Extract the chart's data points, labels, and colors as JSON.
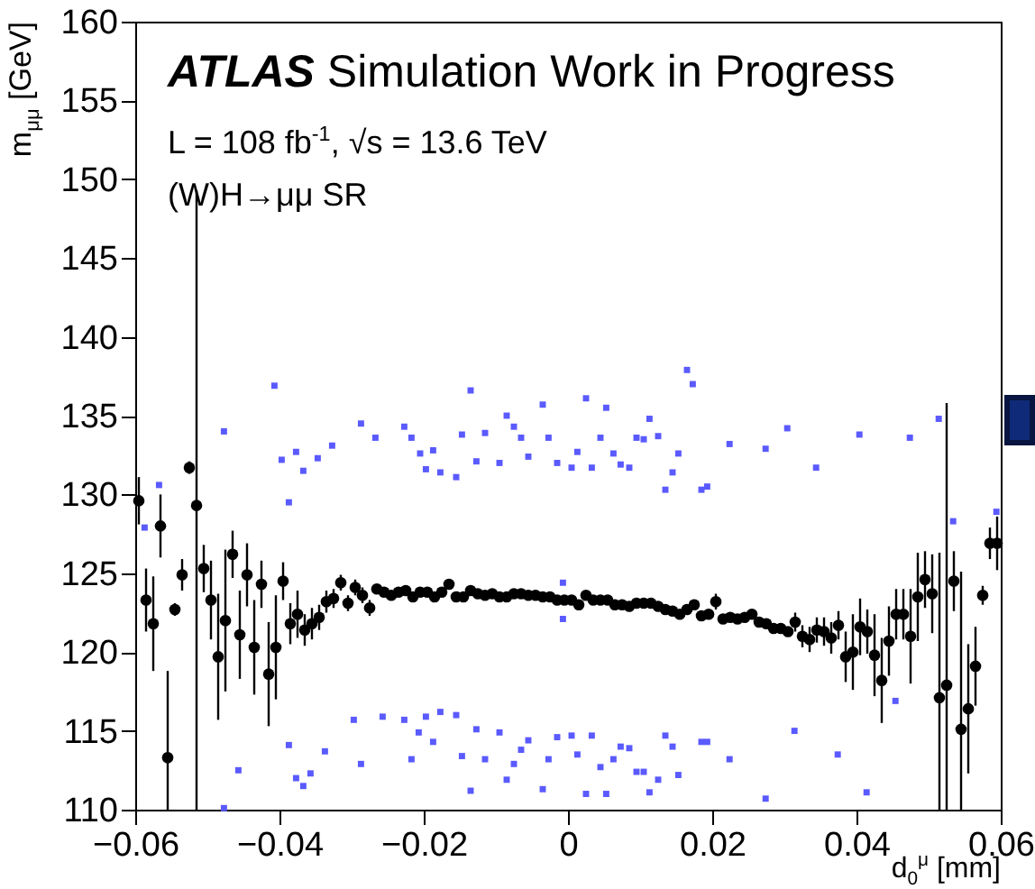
{
  "chart_data": {
    "type": "scatter",
    "title": "ATLAS Simulation Work in Progress",
    "annotations": [
      "L = 108 fb$^{-1}$, √s = 13.6 TeV",
      "(W)H→μμ SR"
    ],
    "xlabel": "d$_{0}$$^{μ}$ [mm]",
    "ylabel": "m$_{μμ}$ [GeV]",
    "xlim": [
      -0.06,
      0.06
    ],
    "xticks": [
      -0.06,
      -0.04,
      -0.02,
      0,
      0.02,
      0.04,
      0.06
    ],
    "ylim": [
      110,
      160
    ],
    "yticks": [
      110,
      115,
      120,
      125,
      130,
      135,
      140,
      145,
      150,
      155,
      160
    ],
    "grid": false,
    "marker": "circle",
    "series": [
      {
        "color": "#000000",
        "x": [
          -0.0595,
          -0.0585,
          -0.0575,
          -0.0565,
          -0.0555,
          -0.0545,
          -0.0535,
          -0.0525,
          -0.0515,
          -0.0505,
          -0.0495,
          -0.0485,
          -0.0475,
          -0.0465,
          -0.0455,
          -0.0445,
          -0.0435,
          -0.0425,
          -0.0415,
          -0.0405,
          -0.0395,
          -0.0385,
          -0.0375,
          -0.0365,
          -0.0355,
          -0.0345,
          -0.0335,
          -0.0325,
          -0.0315,
          -0.0305,
          -0.0295,
          -0.0285,
          -0.0275,
          -0.0265,
          -0.0255,
          -0.0245,
          -0.0235,
          -0.0225,
          -0.0215,
          -0.0205,
          -0.0195,
          -0.0185,
          -0.0175,
          -0.0165,
          -0.0155,
          -0.0145,
          -0.0135,
          -0.0125,
          -0.0115,
          -0.0105,
          -0.0095,
          -0.0085,
          -0.0075,
          -0.0065,
          -0.0055,
          -0.0045,
          -0.0035,
          -0.0025,
          -0.0015,
          -0.0005,
          0.0005,
          0.0015,
          0.0025,
          0.0035,
          0.0045,
          0.0055,
          0.0065,
          0.0075,
          0.0085,
          0.0095,
          0.0105,
          0.0115,
          0.0125,
          0.0135,
          0.0145,
          0.0155,
          0.0165,
          0.0175,
          0.0185,
          0.0195,
          0.0205,
          0.0215,
          0.0225,
          0.0235,
          0.0245,
          0.0255,
          0.0265,
          0.0275,
          0.0285,
          0.0295,
          0.0305,
          0.0315,
          0.0325,
          0.0335,
          0.0345,
          0.0355,
          0.0365,
          0.0375,
          0.0385,
          0.0395,
          0.0405,
          0.0415,
          0.0425,
          0.0435,
          0.0445,
          0.0455,
          0.0465,
          0.0475,
          0.0485,
          0.0495,
          0.0505,
          0.0515,
          0.0525,
          0.0535,
          0.0545,
          0.0555,
          0.0565,
          0.0575,
          0.0585,
          0.0595
        ],
        "values": [
          129.6,
          123.3,
          121.8,
          128.0,
          113.3,
          122.7,
          124.9,
          131.7,
          129.3,
          125.3,
          123.3,
          119.7,
          122.0,
          126.2,
          121.1,
          124.9,
          120.3,
          124.3,
          118.6,
          120.3,
          124.5,
          121.8,
          122.4,
          121.4,
          121.8,
          122.2,
          123.2,
          123.4,
          124.4,
          123.1,
          124.1,
          123.6,
          122.8,
          124.0,
          123.8,
          123.6,
          123.8,
          123.9,
          123.5,
          123.8,
          123.8,
          123.5,
          123.8,
          124.3,
          123.5,
          123.5,
          123.9,
          123.7,
          123.6,
          123.7,
          123.5,
          123.5,
          123.7,
          123.7,
          123.6,
          123.6,
          123.5,
          123.5,
          123.3,
          123.3,
          123.3,
          123.0,
          123.6,
          123.3,
          123.3,
          123.3,
          123.0,
          123.0,
          122.9,
          123.1,
          123.1,
          123.1,
          122.9,
          122.7,
          122.6,
          122.4,
          122.7,
          123.0,
          122.3,
          122.4,
          123.2,
          122.1,
          122.2,
          122.1,
          122.2,
          122.4,
          121.9,
          121.8,
          121.5,
          121.5,
          121.3,
          121.9,
          121.0,
          120.8,
          121.4,
          121.3,
          120.9,
          121.7,
          119.7,
          120.0,
          121.6,
          121.3,
          119.8,
          118.2,
          120.7,
          122.4,
          122.4,
          121.0,
          123.5,
          124.6,
          123.7,
          117.1,
          117.9,
          124.5,
          115.1,
          116.4,
          119.1,
          123.6,
          126.9,
          126.9
        ],
        "errors": [
          1.5,
          2,
          3,
          2,
          [
            110,
            118.8
          ],
          0.4,
          1,
          0.4,
          [
            110,
            149.3
          ],
          1.5,
          2.5,
          4,
          4.5,
          1.5,
          2.8,
          2,
          3,
          1.5,
          3.3,
          3.3,
          1.2,
          1.3,
          1.5,
          1,
          1,
          0.8,
          0.7,
          0.6,
          0.5,
          0.5,
          0.5,
          0.5,
          0.5,
          null,
          null,
          null,
          null,
          null,
          null,
          null,
          null,
          null,
          null,
          null,
          null,
          null,
          null,
          null,
          null,
          null,
          null,
          null,
          null,
          null,
          null,
          null,
          null,
          null,
          null,
          null,
          null,
          null,
          null,
          null,
          null,
          null,
          null,
          null,
          null,
          null,
          null,
          null,
          null,
          null,
          null,
          null,
          null,
          null,
          null,
          null,
          0.5,
          null,
          null,
          null,
          null,
          null,
          null,
          null,
          null,
          null,
          null,
          0.6,
          0.7,
          0.8,
          0.8,
          0.9,
          1,
          0.9,
          1.6,
          2.4,
          1.8,
          1.4,
          2.6,
          2.7,
          2.2,
          1.6,
          1.6,
          3.0,
          2.8,
          1.8,
          2.5,
          [
            110,
            126.3
          ],
          [
            110,
            135.8
          ],
          1.9,
          [
            110,
            125.1
          ],
          4.1,
          2.5,
          0.6,
          1,
          1.7
        ]
      },
      {
        "color": "#5a5aff",
        "marker": "square",
        "x": [
          -0.0227,
          -0.0217,
          -0.0205,
          -0.0197,
          -0.0187,
          -0.0177,
          -0.0155,
          -0.0147,
          -0.0135,
          -0.0127,
          -0.0115,
          -0.0095,
          -0.0085,
          -0.0075,
          -0.0065,
          -0.0055,
          -0.0035,
          -0.0027,
          -0.0015,
          0.0005,
          0.0013,
          0.0025,
          0.0033,
          0.0045,
          0.0053,
          0.0063,
          0.0073,
          0.0085,
          0.0095,
          0.0105,
          0.0113,
          0.0125,
          0.0135,
          0.0145,
          0.0153,
          0.0165,
          0.0173,
          0.0185,
          0.0193,
          -0.0587,
          -0.0567,
          -0.0477,
          -0.0407,
          -0.0397,
          -0.0387,
          -0.0377,
          -0.0367,
          -0.0347,
          -0.0327,
          -0.0287,
          -0.0267,
          0.0224,
          0.0274,
          0.0304,
          0.0344,
          0.0404,
          0.0474,
          0.0514,
          0.0534,
          0.0594,
          -0.0007,
          -0.0007
        ],
        "values": [
          134.3,
          133.6,
          132.6,
          131.6,
          132.8,
          131.4,
          131.1,
          133.8,
          136.6,
          132.1,
          133.9,
          132.0,
          135.0,
          134.3,
          133.6,
          132.4,
          135.7,
          133.6,
          132.0,
          131.7,
          132.7,
          136.1,
          131.7,
          133.6,
          135.5,
          132.6,
          131.9,
          131.7,
          133.6,
          133.5,
          134.8,
          133.7,
          130.3,
          131.4,
          132.6,
          137.9,
          137.0,
          130.3,
          130.5,
          127.9,
          130.6,
          134.0,
          136.9,
          132.2,
          129.5,
          132.7,
          131.5,
          132.3,
          133.1,
          134.5,
          133.6,
          133.2,
          132.9,
          134.2,
          131.7,
          133.8,
          133.6,
          134.8,
          128.3,
          128.9,
          124.4,
          122.1
        ]
      },
      {
        "color": "#5a5aff",
        "marker": "square",
        "x": [
          -0.0227,
          -0.0217,
          -0.0207,
          -0.0197,
          -0.0187,
          -0.0177,
          -0.0155,
          -0.0147,
          -0.0135,
          -0.0127,
          -0.0115,
          -0.0095,
          -0.0085,
          -0.0075,
          -0.0065,
          -0.0055,
          -0.0035,
          -0.0027,
          -0.0015,
          0.0005,
          0.0013,
          0.0025,
          0.0033,
          0.0045,
          0.0053,
          0.0063,
          0.0073,
          0.0085,
          0.0095,
          0.0105,
          0.0113,
          0.0125,
          0.0135,
          0.0145,
          0.0153,
          0.0185,
          0.0193,
          -0.0477,
          -0.0457,
          -0.0387,
          -0.0377,
          -0.0367,
          -0.0357,
          -0.0337,
          -0.0297,
          -0.0287,
          -0.0257,
          0.0224,
          0.0274,
          0.0314,
          0.0374,
          0.0414,
          0.0454
        ],
        "values": [
          115.7,
          113.2,
          114.9,
          115.9,
          114.3,
          116.2,
          116.0,
          113.4,
          111.2,
          115.1,
          113.2,
          114.9,
          111.9,
          112.9,
          113.8,
          114.4,
          111.3,
          113.2,
          114.6,
          114.7,
          113.5,
          111.0,
          114.7,
          112.7,
          111.0,
          113.2,
          114.0,
          113.9,
          112.4,
          112.4,
          111.1,
          111.9,
          114.7,
          114.0,
          112.2,
          114.3,
          114.3,
          110.1,
          112.5,
          114.1,
          112.0,
          111.5,
          112.3,
          113.7,
          115.7,
          112.9,
          115.9,
          113.2,
          110.7,
          115.0,
          113.5,
          111.1,
          116.9
        ]
      }
    ]
  }
}
